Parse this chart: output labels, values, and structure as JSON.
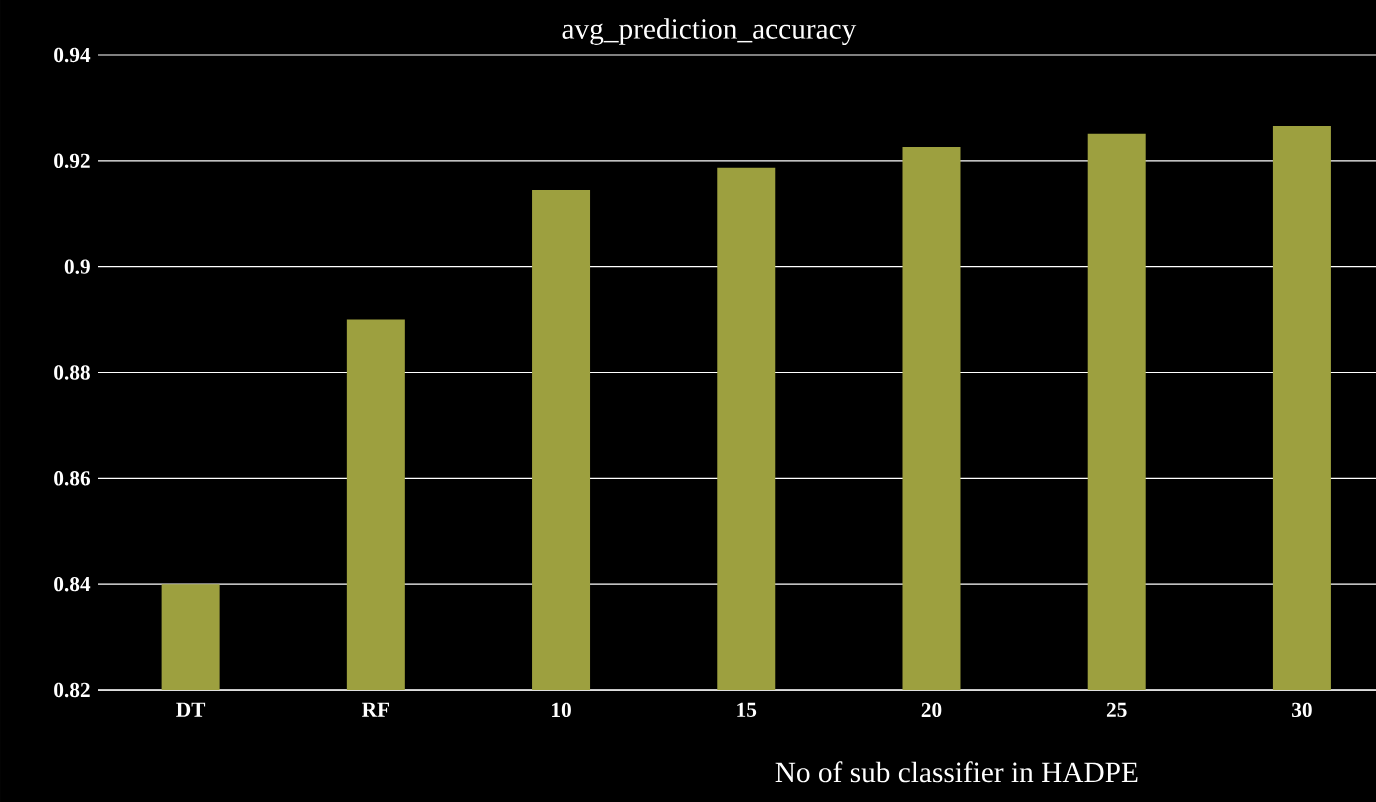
{
  "chart_data": {
    "type": "bar",
    "title": "avg_prediction_accuracy",
    "xlabel": "No of sub classifier in HADPE",
    "categories": [
      "DT",
      "RF",
      "10",
      "15",
      "20",
      "25",
      "30"
    ],
    "values": [
      0.84,
      0.89,
      0.9145,
      0.9187,
      0.9226,
      0.9251,
      0.9266
    ],
    "color": "#9da03f",
    "ylim": [
      0.82,
      0.94
    ],
    "yticks": [
      0.82,
      0.84,
      0.86,
      0.88,
      0.9,
      0.92,
      0.94
    ],
    "grid": "y"
  }
}
